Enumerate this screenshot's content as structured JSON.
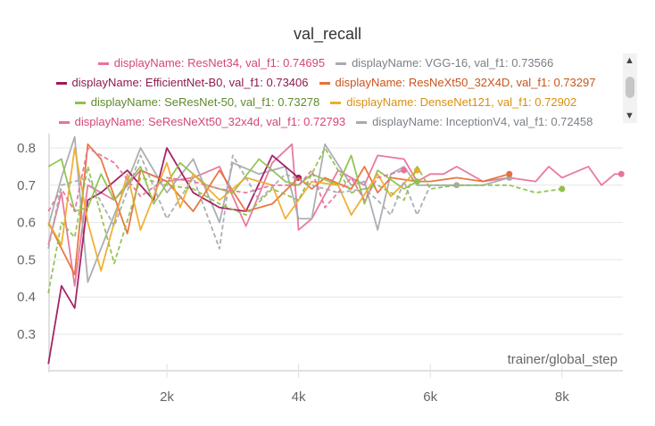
{
  "chart_data": {
    "type": "line",
    "title": "val_recall",
    "xlabel": "trainer/global_step",
    "ylabel": "",
    "xlim": [
      200,
      8900
    ],
    "ylim": [
      0.2,
      0.83
    ],
    "xticks": [
      2000,
      4000,
      6000,
      8000
    ],
    "xtick_labels": [
      "2k",
      "4k",
      "6k",
      "8k"
    ],
    "yticks": [
      0.3,
      0.4,
      0.5,
      0.6,
      0.7,
      0.8
    ],
    "ytick_labels": [
      "0.3",
      "0.4",
      "0.5",
      "0.6",
      "0.7",
      "0.8"
    ],
    "grid": true,
    "legend_position": "top",
    "series": [
      {
        "name": "displayName: ResNet34, val_f1: 0.74695",
        "color": "#e8739a",
        "dash": false,
        "points": [
          [
            200,
            0.54
          ],
          [
            400,
            0.68
          ],
          [
            600,
            0.43
          ],
          [
            800,
            0.7
          ],
          [
            1200,
            0.66
          ],
          [
            1600,
            0.74
          ],
          [
            2000,
            0.71
          ],
          [
            2400,
            0.72
          ],
          [
            2800,
            0.75
          ],
          [
            3200,
            0.59
          ],
          [
            3600,
            0.76
          ],
          [
            3900,
            0.81
          ],
          [
            4000,
            0.58
          ],
          [
            4200,
            0.61
          ],
          [
            4600,
            0.74
          ],
          [
            5000,
            0.7
          ],
          [
            5200,
            0.78
          ],
          [
            5600,
            0.77
          ],
          [
            5800,
            0.71
          ],
          [
            6000,
            0.73
          ],
          [
            6200,
            0.73
          ],
          [
            6400,
            0.75
          ],
          [
            6800,
            0.71
          ],
          [
            7200,
            0.72
          ],
          [
            7600,
            0.71
          ],
          [
            7800,
            0.75
          ],
          [
            8000,
            0.72
          ],
          [
            8400,
            0.75
          ],
          [
            8600,
            0.7
          ],
          [
            8800,
            0.73
          ],
          [
            8900,
            0.73
          ]
        ]
      },
      {
        "name": "displayName: VGG-16, val_f1: 0.73566",
        "color": "#a7abaf",
        "dash": false,
        "points": [
          [
            200,
            0.59
          ],
          [
            400,
            0.72
          ],
          [
            600,
            0.83
          ],
          [
            800,
            0.44
          ],
          [
            1200,
            0.62
          ],
          [
            1600,
            0.8
          ],
          [
            2000,
            0.68
          ],
          [
            2400,
            0.77
          ],
          [
            2800,
            0.6
          ],
          [
            3000,
            0.76
          ],
          [
            3400,
            0.73
          ],
          [
            3800,
            0.75
          ],
          [
            4000,
            0.61
          ],
          [
            4200,
            0.61
          ],
          [
            4400,
            0.81
          ],
          [
            4800,
            0.7
          ],
          [
            5000,
            0.71
          ],
          [
            5200,
            0.58
          ],
          [
            5400,
            0.73
          ],
          [
            5600,
            0.75
          ],
          [
            5800,
            0.7
          ],
          [
            6000,
            0.7
          ],
          [
            6400,
            0.7
          ],
          [
            6800,
            0.7
          ],
          [
            7200,
            0.72
          ]
        ]
      },
      {
        "name": "displayName: EfficientNet-B0, val_f1: 0.73406",
        "color": "#a0185f",
        "dash": false,
        "points": [
          [
            200,
            0.22
          ],
          [
            400,
            0.43
          ],
          [
            600,
            0.37
          ],
          [
            800,
            0.66
          ],
          [
            1000,
            0.68
          ],
          [
            1400,
            0.74
          ],
          [
            1800,
            0.66
          ],
          [
            2000,
            0.8
          ],
          [
            2400,
            0.68
          ],
          [
            2800,
            0.64
          ],
          [
            3200,
            0.63
          ],
          [
            3600,
            0.78
          ],
          [
            4000,
            0.72
          ]
        ]
      },
      {
        "name": "displayName: ResNeXt50_32X4D, val_f1: 0.73297",
        "color": "#e8703a",
        "dash": false,
        "points": [
          [
            200,
            0.6
          ],
          [
            600,
            0.46
          ],
          [
            800,
            0.81
          ],
          [
            1000,
            0.77
          ],
          [
            1400,
            0.57
          ],
          [
            1600,
            0.74
          ],
          [
            2000,
            0.71
          ],
          [
            2400,
            0.63
          ],
          [
            2800,
            0.74
          ],
          [
            3200,
            0.63
          ],
          [
            3600,
            0.65
          ],
          [
            4000,
            0.72
          ],
          [
            4200,
            0.69
          ],
          [
            4400,
            0.72
          ],
          [
            4800,
            0.69
          ],
          [
            5000,
            0.75
          ],
          [
            5200,
            0.68
          ],
          [
            5400,
            0.72
          ],
          [
            5800,
            0.71
          ],
          [
            6000,
            0.71
          ],
          [
            6400,
            0.72
          ],
          [
            6800,
            0.71
          ],
          [
            7200,
            0.73
          ]
        ]
      },
      {
        "name": "displayName: SeResNet-50, val_f1: 0.73278",
        "color": "#8fc14c",
        "dash": false,
        "points": [
          [
            200,
            0.75
          ],
          [
            400,
            0.77
          ],
          [
            600,
            0.63
          ],
          [
            800,
            0.64
          ],
          [
            1000,
            0.73
          ],
          [
            1200,
            0.66
          ],
          [
            1600,
            0.75
          ],
          [
            1800,
            0.65
          ],
          [
            2200,
            0.76
          ],
          [
            2600,
            0.7
          ],
          [
            3000,
            0.68
          ],
          [
            3400,
            0.77
          ],
          [
            3800,
            0.71
          ],
          [
            4000,
            0.7
          ],
          [
            4200,
            0.73
          ],
          [
            4600,
            0.7
          ],
          [
            4800,
            0.78
          ],
          [
            5000,
            0.65
          ],
          [
            5200,
            0.74
          ],
          [
            5600,
            0.69
          ],
          [
            5800,
            0.71
          ]
        ]
      },
      {
        "name": "displayName: DenseNet121, val_f1: 0.72902",
        "color": "#f0ac2a",
        "dash": false,
        "points": [
          [
            200,
            0.6
          ],
          [
            400,
            0.54
          ],
          [
            600,
            0.8
          ],
          [
            800,
            0.6
          ],
          [
            1000,
            0.47
          ],
          [
            1400,
            0.73
          ],
          [
            1600,
            0.58
          ],
          [
            2000,
            0.76
          ],
          [
            2200,
            0.64
          ],
          [
            2400,
            0.73
          ],
          [
            2800,
            0.66
          ],
          [
            3200,
            0.72
          ],
          [
            3600,
            0.7
          ],
          [
            3800,
            0.61
          ],
          [
            4200,
            0.71
          ],
          [
            4600,
            0.7
          ],
          [
            4800,
            0.62
          ],
          [
            5200,
            0.73
          ],
          [
            5400,
            0.67
          ],
          [
            5800,
            0.74
          ]
        ]
      },
      {
        "name": "displayName: SeResNeXt50_32x4d, val_f1: 0.72793",
        "color": "#e8739a",
        "dash": true,
        "points": [
          [
            200,
            0.63
          ],
          [
            400,
            0.69
          ],
          [
            600,
            0.63
          ],
          [
            800,
            0.8
          ],
          [
            1200,
            0.76
          ],
          [
            1600,
            0.67
          ],
          [
            2000,
            0.72
          ],
          [
            2400,
            0.71
          ],
          [
            2800,
            0.69
          ],
          [
            3200,
            0.68
          ],
          [
            3600,
            0.7
          ],
          [
            4000,
            0.7
          ],
          [
            4200,
            0.74
          ],
          [
            4400,
            0.64
          ],
          [
            4800,
            0.72
          ],
          [
            5000,
            0.66
          ],
          [
            5200,
            0.72
          ],
          [
            5600,
            0.74
          ]
        ]
      },
      {
        "name": "displayName: InceptionV4, val_f1: 0.72458",
        "color": "#a7abaf",
        "dash": true,
        "points": [
          [
            200,
            0.53
          ],
          [
            400,
            0.7
          ],
          [
            800,
            0.72
          ],
          [
            1200,
            0.59
          ],
          [
            1600,
            0.78
          ],
          [
            2000,
            0.61
          ],
          [
            2400,
            0.72
          ],
          [
            2800,
            0.53
          ],
          [
            3000,
            0.78
          ],
          [
            3400,
            0.66
          ],
          [
            3800,
            0.73
          ],
          [
            4200,
            0.7
          ],
          [
            4600,
            0.68
          ],
          [
            5000,
            0.69
          ],
          [
            5200,
            0.66
          ],
          [
            5400,
            0.62
          ],
          [
            5600,
            0.71
          ],
          [
            5800,
            0.62
          ],
          [
            6000,
            0.7
          ],
          [
            6400,
            0.7
          ]
        ]
      },
      {
        "name": "",
        "color": "#8fc14c",
        "dash": true,
        "points": [
          [
            200,
            0.41
          ],
          [
            400,
            0.6
          ],
          [
            600,
            0.56
          ],
          [
            800,
            0.75
          ],
          [
            1200,
            0.49
          ],
          [
            1600,
            0.72
          ],
          [
            2000,
            0.7
          ],
          [
            2400,
            0.69
          ],
          [
            2800,
            0.65
          ],
          [
            3200,
            0.62
          ],
          [
            3600,
            0.69
          ],
          [
            4000,
            0.66
          ],
          [
            4400,
            0.8
          ],
          [
            4800,
            0.68
          ],
          [
            5200,
            0.7
          ],
          [
            5600,
            0.66
          ],
          [
            5800,
            0.75
          ],
          [
            6000,
            0.69
          ],
          [
            6400,
            0.7
          ],
          [
            7200,
            0.7
          ],
          [
            7600,
            0.68
          ],
          [
            8000,
            0.69
          ]
        ]
      }
    ]
  },
  "scroll": {
    "up_icon": "triangle-up-icon",
    "down_icon": "triangle-down-icon",
    "up": "▲",
    "down": "▼"
  }
}
